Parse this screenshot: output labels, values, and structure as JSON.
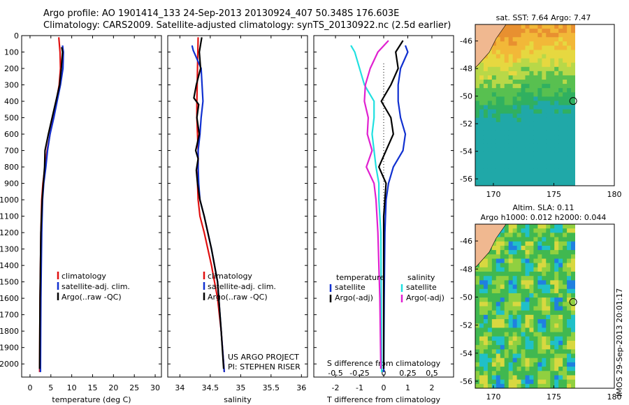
{
  "header": {
    "line1": "Argo profile: AO 1901414_133 24-Sep-2013 20130924_407 50.348S 176.603E",
    "line2": "Climatology: CARS2009. Satellite-adjusted climatology: synTS_20130922.nc (2.5d earlier)"
  },
  "depth_axis": {
    "ticks": [
      "0",
      "100",
      "200",
      "300",
      "400",
      "500",
      "600",
      "700",
      "800",
      "900",
      "1000",
      "1100",
      "1200",
      "1300",
      "1400",
      "1500",
      "1600",
      "1700",
      "1800",
      "1900",
      "2000"
    ]
  },
  "colors": {
    "climatology": "#e01010",
    "satellite": "#1030d0",
    "argo": "#000000",
    "satellite_salinity": "#20e0e0",
    "argo_salinity": "#e020d0"
  },
  "chart_data": [
    {
      "type": "line",
      "panel": "temperature",
      "xlabel": "temperature (deg C)",
      "xticks": [
        "0",
        "5",
        "10",
        "15",
        "20",
        "25",
        "30"
      ],
      "xlim": [
        -2,
        31.5
      ],
      "ylim": [
        2080,
        0
      ],
      "legend": [
        "climatology",
        "satellite-adj. clim.",
        "Argo(..raw -QC)"
      ],
      "series": [
        {
          "name": "climatology",
          "color": "#e01010",
          "x": [
            6.9,
            7.2,
            7.3,
            7.0,
            6.3,
            5.5,
            4.8,
            4.1,
            3.6,
            3.1,
            2.8,
            2.6,
            2.5,
            2.4,
            2.35,
            2.3
          ],
          "y": [
            10,
            100,
            200,
            300,
            400,
            500,
            600,
            700,
            800,
            900,
            1000,
            1200,
            1400,
            1600,
            1800,
            2050
          ]
        },
        {
          "name": "satellite-adj. clim.",
          "color": "#1030d0",
          "x": [
            7.8,
            8.0,
            7.9,
            7.3,
            6.5,
            5.7,
            4.8,
            4.2,
            3.8,
            3.3,
            3.0,
            2.8,
            2.7,
            2.6,
            2.55,
            2.5
          ],
          "y": [
            60,
            100,
            200,
            300,
            400,
            500,
            600,
            700,
            800,
            900,
            1000,
            1200,
            1400,
            1600,
            1800,
            2050
          ]
        },
        {
          "name": "Argo(..raw -QC)",
          "color": "#000000",
          "x": [
            7.6,
            7.8,
            7.5,
            7.1,
            6.2,
            5.3,
            4.4,
            3.6,
            3.5,
            3.2,
            2.9,
            2.6,
            2.5,
            2.4,
            2.35,
            2.3
          ],
          "y": [
            70,
            100,
            200,
            300,
            400,
            500,
            600,
            700,
            800,
            900,
            1000,
            1200,
            1400,
            1600,
            1800,
            2030
          ]
        }
      ]
    },
    {
      "type": "line",
      "panel": "salinity",
      "xlabel": "salinity",
      "xticks": [
        "34",
        "34.5",
        "35",
        "35.5",
        "36"
      ],
      "xtick_values": [
        34,
        34.5,
        35,
        35.5,
        36
      ],
      "xlim": [
        33.8,
        36.1
      ],
      "ylim": [
        2080,
        0
      ],
      "legend": [
        "climatology",
        "satellite-adj. clim.",
        "Argo(..raw -QC)"
      ],
      "annotation": [
        "US ARGO PROJECT",
        "PI: STEPHEN RISER"
      ],
      "series": [
        {
          "name": "climatology",
          "color": "#e01010",
          "x": [
            34.3,
            34.29,
            34.28,
            34.28,
            34.29,
            34.3,
            34.3,
            34.29,
            34.3,
            34.33,
            34.4,
            34.52,
            34.62,
            34.68,
            34.73
          ],
          "y": [
            10,
            200,
            400,
            500,
            600,
            700,
            800,
            900,
            1000,
            1100,
            1200,
            1400,
            1600,
            1800,
            2050
          ]
        },
        {
          "name": "satellite-adj. clim.",
          "color": "#1030d0",
          "x": [
            34.2,
            34.22,
            34.35,
            34.38,
            34.35,
            34.33,
            34.3,
            34.3,
            34.31,
            34.33,
            34.4,
            34.52,
            34.62,
            34.68,
            34.73
          ],
          "y": [
            60,
            90,
            200,
            400,
            500,
            600,
            700,
            800,
            900,
            1000,
            1100,
            1300,
            1500,
            1800,
            2050
          ]
        },
        {
          "name": "Argo(..raw -QC)",
          "color": "#000000",
          "x": [
            34.36,
            34.32,
            34.34,
            34.27,
            34.23,
            34.31,
            34.28,
            34.32,
            34.26,
            34.3,
            34.27,
            34.29,
            34.33,
            34.4,
            34.52,
            34.62,
            34.68,
            34.72
          ],
          "y": [
            10,
            100,
            200,
            300,
            380,
            420,
            500,
            600,
            700,
            750,
            820,
            900,
            1000,
            1100,
            1300,
            1500,
            1800,
            2030
          ]
        }
      ]
    },
    {
      "type": "line",
      "panel": "difference",
      "xlabel": "T difference from climatology",
      "xticks": [
        "-2",
        "-1",
        "0",
        "1",
        "2"
      ],
      "xtick_values": [
        -2,
        -1,
        0,
        1,
        2
      ],
      "x2label": "S difference from climatology",
      "x2ticks": [
        "-0.5",
        "-0.25",
        "0",
        "0.25",
        "0.5"
      ],
      "xlim": [
        -2.9,
        2.9
      ],
      "ylim": [
        2080,
        0
      ],
      "legend_temperature": {
        "title": "temperature",
        "items": [
          "satellite",
          "Argo(-adj)"
        ]
      },
      "legend_salinity": {
        "title": "salinity",
        "items": [
          "satellite",
          "Argo(-adj)"
        ]
      },
      "series": [
        {
          "name": "satellite",
          "group": "temperature",
          "color": "#1030d0",
          "x": [
            0.9,
            1.0,
            0.7,
            0.6,
            0.6,
            0.7,
            0.9,
            0.8,
            0.4,
            0.2,
            0.1,
            0.05,
            0.02,
            0.0
          ],
          "y": [
            60,
            100,
            200,
            300,
            400,
            500,
            600,
            700,
            800,
            900,
            1000,
            1200,
            1600,
            2050
          ]
        },
        {
          "name": "Argo(-adj)",
          "group": "temperature",
          "color": "#000000",
          "x": [
            0.8,
            0.5,
            0.6,
            0.3,
            -0.1,
            0.3,
            0.4,
            0.1,
            -0.2,
            0.1,
            0.0,
            0.0
          ],
          "y": [
            30,
            100,
            200,
            300,
            400,
            500,
            600,
            700,
            800,
            900,
            1100,
            2030
          ]
        },
        {
          "name": "satellite",
          "group": "salinity",
          "color": "#20e0e0",
          "x": [
            -0.34,
            -0.3,
            -0.25,
            -0.2,
            -0.1,
            -0.1,
            -0.12,
            -0.1,
            -0.08,
            -0.05,
            -0.05,
            -0.03,
            -0.02
          ],
          "y": [
            60,
            100,
            200,
            300,
            400,
            500,
            600,
            700,
            800,
            900,
            1000,
            1200,
            2050
          ]
        },
        {
          "name": "Argo(-adj)",
          "group": "salinity",
          "color": "#e020d0",
          "x": [
            0.05,
            -0.06,
            -0.14,
            -0.19,
            -0.2,
            -0.16,
            -0.17,
            -0.12,
            -0.18,
            -0.1,
            -0.08,
            -0.06,
            -0.04,
            -0.03
          ],
          "y": [
            30,
            100,
            200,
            300,
            400,
            500,
            600,
            700,
            800,
            900,
            1000,
            1200,
            1600,
            2030
          ]
        }
      ]
    },
    {
      "type": "heatmap",
      "panel": "sst-map",
      "title": "sat. SST: 7.64  Argo: 7.47",
      "xticks": [
        "170",
        "175",
        "180"
      ],
      "yticks": [
        "-46",
        "-48",
        "-50",
        "-52",
        "-54",
        "-56"
      ],
      "xlim": [
        168.5,
        180
      ],
      "ylim": [
        -56.5,
        -44.8
      ],
      "argo_position": {
        "lon": 176.6,
        "lat": -50.35
      }
    },
    {
      "type": "heatmap",
      "panel": "sla-map",
      "title_line1": "Altim. SLA: 0.11",
      "title_line2": "Argo h1000: 0.012  h2000: 0.044",
      "xticks": [
        "170",
        "175",
        "180"
      ],
      "yticks": [
        "-46",
        "-48",
        "-50",
        "-52",
        "-54",
        "-56"
      ],
      "xlim": [
        168.5,
        180
      ],
      "ylim": [
        -56.5,
        -44.8
      ],
      "argo_position": {
        "lon": 176.6,
        "lat": -50.35
      }
    }
  ],
  "stamp": "IMOS 29-Sep-2013 20:01:17"
}
